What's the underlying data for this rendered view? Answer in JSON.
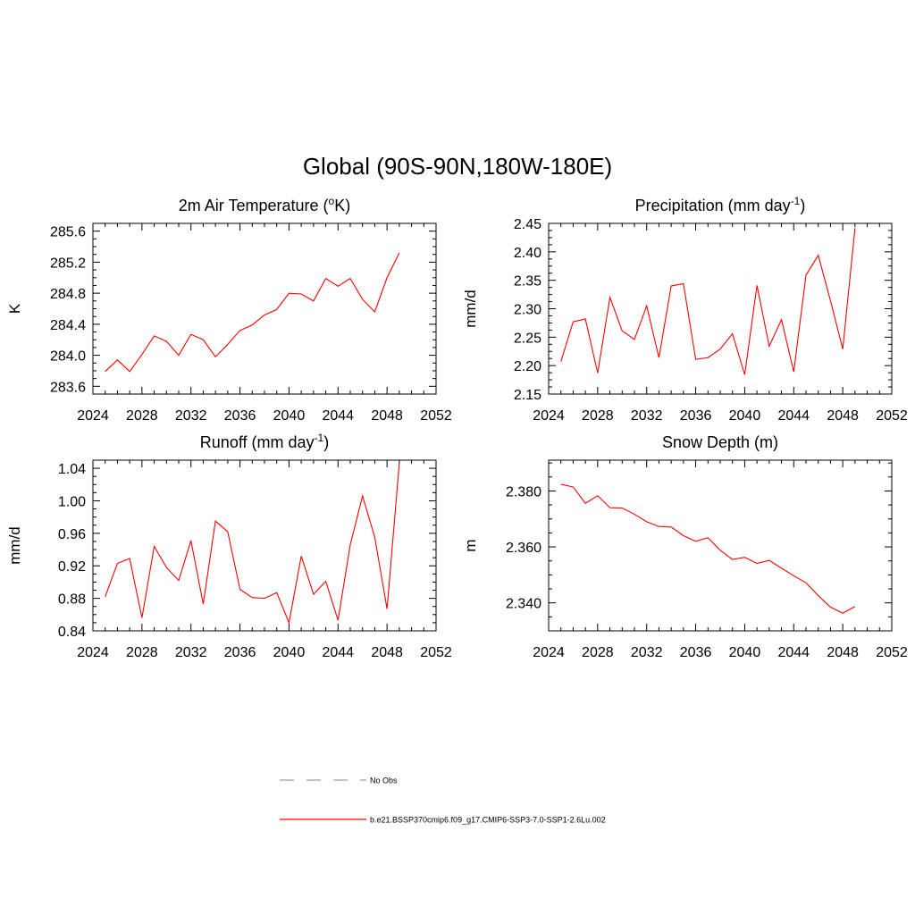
{
  "title": "Global (90S-90N,180W-180E)",
  "legend": {
    "obs_label": "No Obs",
    "obs_color": "#9999dd",
    "case_label": "b.e21.BSSP370cmip6.f09_g17.CMIP6-SSP3-7.0-SSP1-2.6Lu.002",
    "case_color": "#ff0000"
  },
  "chart_data": [
    {
      "type": "line",
      "title": "2m Air Temperature (",
      "title_sup": "o",
      "title_suffix": "K)",
      "ylabel": "K",
      "xlim": [
        2024,
        2052
      ],
      "ylim": [
        283.5,
        285.7
      ],
      "xticks": [
        "2024",
        "2028",
        "2032",
        "2036",
        "2040",
        "2044",
        "2048",
        "2052"
      ],
      "yticks": [
        "283.6",
        "284.0",
        "284.4",
        "284.8",
        "285.2",
        "285.6"
      ],
      "x": [
        2025,
        2026,
        2027,
        2028,
        2029,
        2030,
        2031,
        2032,
        2033,
        2034,
        2035,
        2036,
        2037,
        2038,
        2039,
        2040,
        2041,
        2042,
        2043,
        2044,
        2045,
        2046,
        2047,
        2048,
        2049
      ],
      "series": [
        {
          "color": "#ff0000",
          "values": [
            283.79,
            283.94,
            283.79,
            284.01,
            284.25,
            284.18,
            284.0,
            284.27,
            284.2,
            283.98,
            284.14,
            284.32,
            284.39,
            284.52,
            284.59,
            284.8,
            284.79,
            284.7,
            284.99,
            284.89,
            284.99,
            284.72,
            284.56,
            285.0,
            285.32
          ]
        }
      ]
    },
    {
      "type": "line",
      "title": "Precipitation (mm day",
      "title_sup": "-1",
      "title_suffix": ")",
      "ylabel": "mm/d",
      "xlim": [
        2024,
        2052
      ],
      "ylim": [
        2.15,
        2.45
      ],
      "xticks": [
        "2024",
        "2028",
        "2032",
        "2036",
        "2040",
        "2044",
        "2048",
        "2052"
      ],
      "yticks": [
        "2.15",
        "2.20",
        "2.25",
        "2.30",
        "2.35",
        "2.40",
        "2.45"
      ],
      "x": [
        2025,
        2026,
        2027,
        2028,
        2029,
        2030,
        2031,
        2032,
        2033,
        2034,
        2035,
        2036,
        2037,
        2038,
        2039,
        2040,
        2041,
        2042,
        2043,
        2044,
        2045,
        2046,
        2047,
        2048,
        2049
      ],
      "series": [
        {
          "color": "#ff0000",
          "values": [
            2.207,
            2.277,
            2.282,
            2.187,
            2.32,
            2.261,
            2.246,
            2.305,
            2.214,
            2.34,
            2.344,
            2.211,
            2.214,
            2.229,
            2.256,
            2.184,
            2.341,
            2.234,
            2.281,
            2.189,
            2.359,
            2.394,
            2.314,
            2.229,
            2.442
          ]
        }
      ]
    },
    {
      "type": "line",
      "title": "Runoff (mm day",
      "title_sup": "-1",
      "title_suffix": ")",
      "ylabel": "mm/d",
      "xlim": [
        2024,
        2052
      ],
      "ylim": [
        0.84,
        1.05
      ],
      "xticks": [
        "2024",
        "2028",
        "2032",
        "2036",
        "2040",
        "2044",
        "2048",
        "2052"
      ],
      "yticks": [
        "0.84",
        "0.88",
        "0.92",
        "0.96",
        "1.00",
        "1.04"
      ],
      "x": [
        2025,
        2026,
        2027,
        2028,
        2029,
        2030,
        2031,
        2032,
        2033,
        2034,
        2035,
        2036,
        2037,
        2038,
        2039,
        2040,
        2041,
        2042,
        2043,
        2044,
        2045,
        2046,
        2047,
        2048,
        2049
      ],
      "series": [
        {
          "color": "#ff0000",
          "values": [
            0.882,
            0.923,
            0.929,
            0.856,
            0.944,
            0.918,
            0.902,
            0.951,
            0.873,
            0.975,
            0.962,
            0.891,
            0.881,
            0.88,
            0.887,
            0.85,
            0.932,
            0.885,
            0.901,
            0.853,
            0.946,
            1.006,
            0.955,
            0.867,
            1.046
          ]
        }
      ]
    },
    {
      "type": "line",
      "title": "Snow Depth (m)",
      "title_sup": "",
      "title_suffix": "",
      "ylabel": "m",
      "xlim": [
        2024,
        2052
      ],
      "ylim": [
        2.33,
        2.391
      ],
      "xticks": [
        "2024",
        "2028",
        "2032",
        "2036",
        "2040",
        "2044",
        "2048",
        "2052"
      ],
      "yticks": [
        "2.340",
        "2.360",
        "2.380"
      ],
      "x": [
        2025,
        2026,
        2027,
        2028,
        2029,
        2030,
        2031,
        2032,
        2033,
        2034,
        2035,
        2036,
        2037,
        2038,
        2039,
        2040,
        2041,
        2042,
        2043,
        2044,
        2045,
        2046,
        2047,
        2048,
        2049
      ],
      "series": [
        {
          "color": "#ff0000",
          "values": [
            2.3824,
            2.3814,
            2.3756,
            2.3783,
            2.374,
            2.3739,
            2.3717,
            2.369,
            2.3673,
            2.3671,
            2.364,
            2.362,
            2.3633,
            2.3588,
            2.3555,
            2.3563,
            2.3541,
            2.3552,
            2.3524,
            2.3497,
            2.3472,
            2.3426,
            2.3385,
            2.3363,
            2.3387
          ]
        }
      ]
    }
  ]
}
